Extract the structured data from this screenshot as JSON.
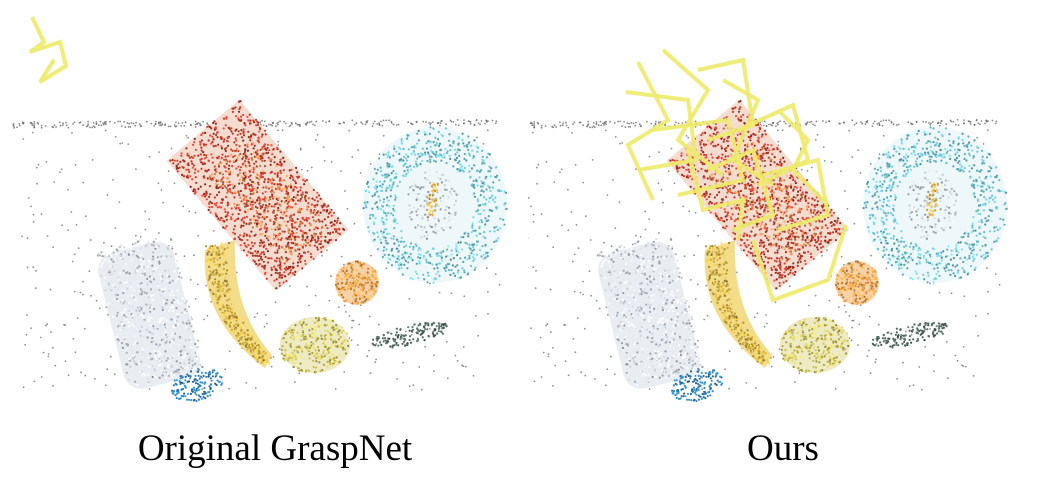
{
  "captions": {
    "left": "Original GraspNet",
    "right": "Ours"
  },
  "panels": [
    {
      "id": "left",
      "label": "Original GraspNet",
      "grasp_count": 1
    },
    {
      "id": "right",
      "label": "Ours",
      "grasp_count": 12
    }
  ],
  "scene_objects": [
    "red-box",
    "plate",
    "banana",
    "bottle",
    "orange",
    "pear",
    "table-edge"
  ],
  "colors": {
    "grasp": "#eeea6c",
    "red_box": "#c0392b",
    "plate": "#6cc6d4",
    "banana": "#e8c24a",
    "bottle": "#d8dde6",
    "bottle_cap": "#2f7fb5",
    "orange": "#e5953c",
    "pear": "#c3b84a",
    "points": "#333333"
  }
}
